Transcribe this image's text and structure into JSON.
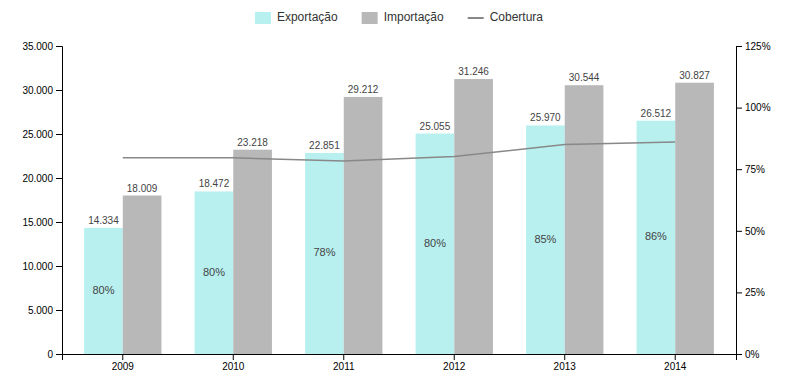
{
  "chart_data": {
    "type": "bar",
    "categories": [
      "2009",
      "2010",
      "2011",
      "2012",
      "2013",
      "2014"
    ],
    "series": [
      {
        "name": "Exportação",
        "color": "#b8f0f0",
        "values": [
          14334,
          18472,
          22851,
          25055,
          25970,
          26512
        ],
        "value_labels": [
          "14.334",
          "18.472",
          "22.851",
          "25.055",
          "25.970",
          "26.512"
        ]
      },
      {
        "name": "Importação",
        "color": "#b8b8b8",
        "values": [
          18009,
          23218,
          29212,
          31246,
          30544,
          30827
        ],
        "value_labels": [
          "18.009",
          "23.218",
          "29.212",
          "31.246",
          "30.544",
          "30.827"
        ]
      },
      {
        "name": "Cobertura",
        "type": "line",
        "axis": "y2",
        "color": "#888888",
        "values": [
          0.796,
          0.796,
          0.783,
          0.802,
          0.85,
          0.86
        ],
        "value_labels": [
          "80%",
          "80%",
          "78%",
          "80%",
          "85%",
          "86%"
        ]
      }
    ],
    "ylim": [
      0,
      35000
    ],
    "yticks": [
      0,
      {
        "value": 5000,
        "label": "5.000"
      },
      {
        "value": 10000,
        "label": "10.000"
      },
      {
        "value": 15000,
        "label": "15.000"
      },
      {
        "value": 20000,
        "label": "20.000"
      },
      {
        "value": 25000,
        "label": "25.000"
      },
      {
        "value": 30000,
        "label": "30.000"
      },
      {
        "value": 35000,
        "label": "35.000"
      }
    ],
    "y2lim": [
      0,
      1.25
    ],
    "y2ticks": [
      {
        "value": 0,
        "label": "0%"
      },
      {
        "value": 0.25,
        "label": "25%"
      },
      {
        "value": 0.5,
        "label": "50%"
      },
      {
        "value": 0.75,
        "label": "75%"
      },
      {
        "value": 1.0,
        "label": "100%"
      },
      {
        "value": 1.25,
        "label": "125%"
      }
    ],
    "data_labels": true,
    "legend": "top",
    "grid": false
  }
}
